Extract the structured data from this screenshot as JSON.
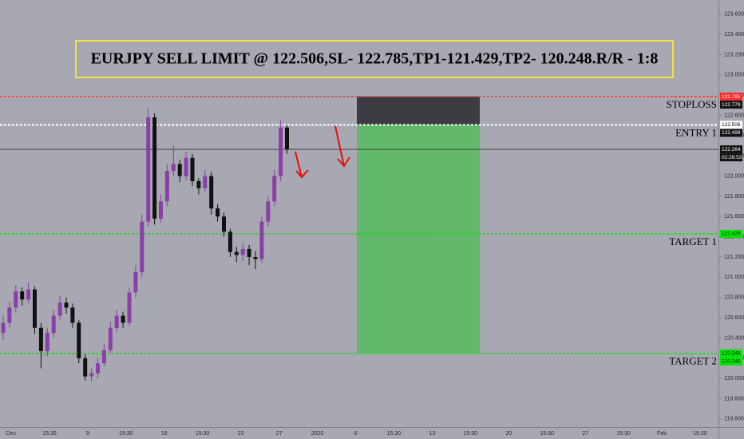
{
  "chart_data": {
    "type": "candlestick",
    "title": "EURJPY SELL LIMIT @ 122.506,SL- 122.785,TP1-121.429,TP2- 120.248.R/R - 1:8",
    "open": [
      120.45,
      120.55,
      120.7,
      120.86,
      120.78,
      120.88,
      120.5,
      120.27,
      120.45,
      120.62,
      120.75,
      120.7,
      120.55,
      120.2,
      120.02,
      120.05,
      120.15,
      120.28,
      120.5,
      120.62,
      120.55,
      120.85,
      121.05,
      121.55,
      122.58,
      121.58,
      121.75,
      122.05,
      122.12,
      122.0,
      122.18,
      121.95,
      121.88,
      122.0,
      121.68,
      121.6,
      121.45,
      121.25,
      121.22,
      121.28,
      121.2,
      121.18,
      121.55,
      121.75,
      122.0,
      122.48
    ],
    "high": [
      120.62,
      120.76,
      120.92,
      120.9,
      120.95,
      120.91,
      120.55,
      120.5,
      120.68,
      120.82,
      120.8,
      120.74,
      120.58,
      120.24,
      120.1,
      120.2,
      120.34,
      120.56,
      120.68,
      120.66,
      120.9,
      121.12,
      121.62,
      122.67,
      122.62,
      121.82,
      122.12,
      122.3,
      122.16,
      122.24,
      122.22,
      121.98,
      122.06,
      122.04,
      121.72,
      121.64,
      121.48,
      121.3,
      121.34,
      121.32,
      121.26,
      121.6,
      121.8,
      122.06,
      122.55,
      122.5
    ],
    "low": [
      120.38,
      120.5,
      120.65,
      120.72,
      120.74,
      120.44,
      120.1,
      120.22,
      120.4,
      120.58,
      120.64,
      120.5,
      120.15,
      119.98,
      119.97,
      120.0,
      120.12,
      120.25,
      120.46,
      120.5,
      120.52,
      120.8,
      121.0,
      121.5,
      121.52,
      121.54,
      121.7,
      122.0,
      121.94,
      121.96,
      121.9,
      121.82,
      121.84,
      121.62,
      121.55,
      121.4,
      121.2,
      121.15,
      121.16,
      121.12,
      121.08,
      121.14,
      121.5,
      121.7,
      121.95,
      122.22
    ],
    "close": [
      120.55,
      120.7,
      120.86,
      120.78,
      120.88,
      120.5,
      120.27,
      120.45,
      120.62,
      120.75,
      120.7,
      120.55,
      120.2,
      120.02,
      120.05,
      120.15,
      120.28,
      120.5,
      120.62,
      120.55,
      120.85,
      121.05,
      121.55,
      122.58,
      121.58,
      121.75,
      122.05,
      122.12,
      122.0,
      122.18,
      121.95,
      121.88,
      122.0,
      121.68,
      121.6,
      121.45,
      121.25,
      121.22,
      121.28,
      121.2,
      121.18,
      121.55,
      121.75,
      122.0,
      122.48,
      122.264
    ],
    "up_color": "#8a3fa8",
    "down_color": "#111111",
    "ylim": [
      119.52,
      123.74
    ],
    "yticks": [
      {
        "value": 119.6,
        "label": "119.600"
      },
      {
        "value": 119.8,
        "label": "119.800"
      },
      {
        "value": 120.0,
        "label": "120.000"
      },
      {
        "value": 120.2,
        "label": "120.200"
      },
      {
        "value": 120.4,
        "label": "120.400"
      },
      {
        "value": 120.6,
        "label": "120.600"
      },
      {
        "value": 120.8,
        "label": "120.800"
      },
      {
        "value": 121.0,
        "label": "121.000"
      },
      {
        "value": 121.2,
        "label": "121.200"
      },
      {
        "value": 121.4,
        "label": "121.400"
      },
      {
        "value": 121.6,
        "label": "121.600"
      },
      {
        "value": 121.8,
        "label": "121.800"
      },
      {
        "value": 122.0,
        "label": "122.000"
      },
      {
        "value": 122.2,
        "label": "122.200"
      },
      {
        "value": 122.4,
        "label": "122.400"
      },
      {
        "value": 122.6,
        "label": "122.600"
      },
      {
        "value": 122.8,
        "label": "122.800"
      },
      {
        "value": 123.0,
        "label": "123.000"
      },
      {
        "value": 123.2,
        "label": "123.200"
      },
      {
        "value": 123.4,
        "label": "123.400"
      },
      {
        "value": 123.6,
        "label": "123.600"
      }
    ],
    "xticks": [
      "Dec",
      "15:30",
      "9",
      "15:30",
      "16",
      "15:30",
      "23",
      "27",
      "2020",
      "6",
      "15:30",
      "13",
      "15:30",
      "20",
      "15:30",
      "27",
      "15:30",
      "Feb",
      "15:30"
    ],
    "levels": [
      {
        "label": "STOPLOSS",
        "value": 122.785,
        "color": "#ff2a2a"
      },
      {
        "label": "ENTRY 1",
        "value": 122.506,
        "color": "#ffffff"
      },
      {
        "label": "TARGET 1",
        "value": 121.429,
        "color": "#00e600"
      },
      {
        "label": "TARGET 2",
        "value": 120.248,
        "color": "#00e600"
      }
    ],
    "last_price": 122.264,
    "countdown": "02:28:53",
    "axis_tags": [
      {
        "value": 122.785,
        "color": "#ff2a2a",
        "text_color": "#ffffff"
      },
      {
        "value": 122.779,
        "color": "#131313",
        "text_color": "#ffffff"
      },
      {
        "value": 122.506,
        "color": "#ffffff",
        "text_color": "#000000"
      },
      {
        "value": 122.499,
        "color": "#131313",
        "text_color": "#ffffff"
      },
      {
        "value": 122.264,
        "color": "#131313",
        "text_color": "#ffffff"
      },
      {
        "value": 121.429,
        "color": "#00e600",
        "text_color": "#1a1a1a"
      },
      {
        "value": 120.248,
        "color": "#00e600",
        "text_color": "#1a1a1a"
      },
      {
        "value": 120.248,
        "color": "#00e600",
        "text_color": "#1a1a1a"
      }
    ],
    "stop_box_color": "#3c3c42",
    "target_box_color": "#62b96b"
  }
}
